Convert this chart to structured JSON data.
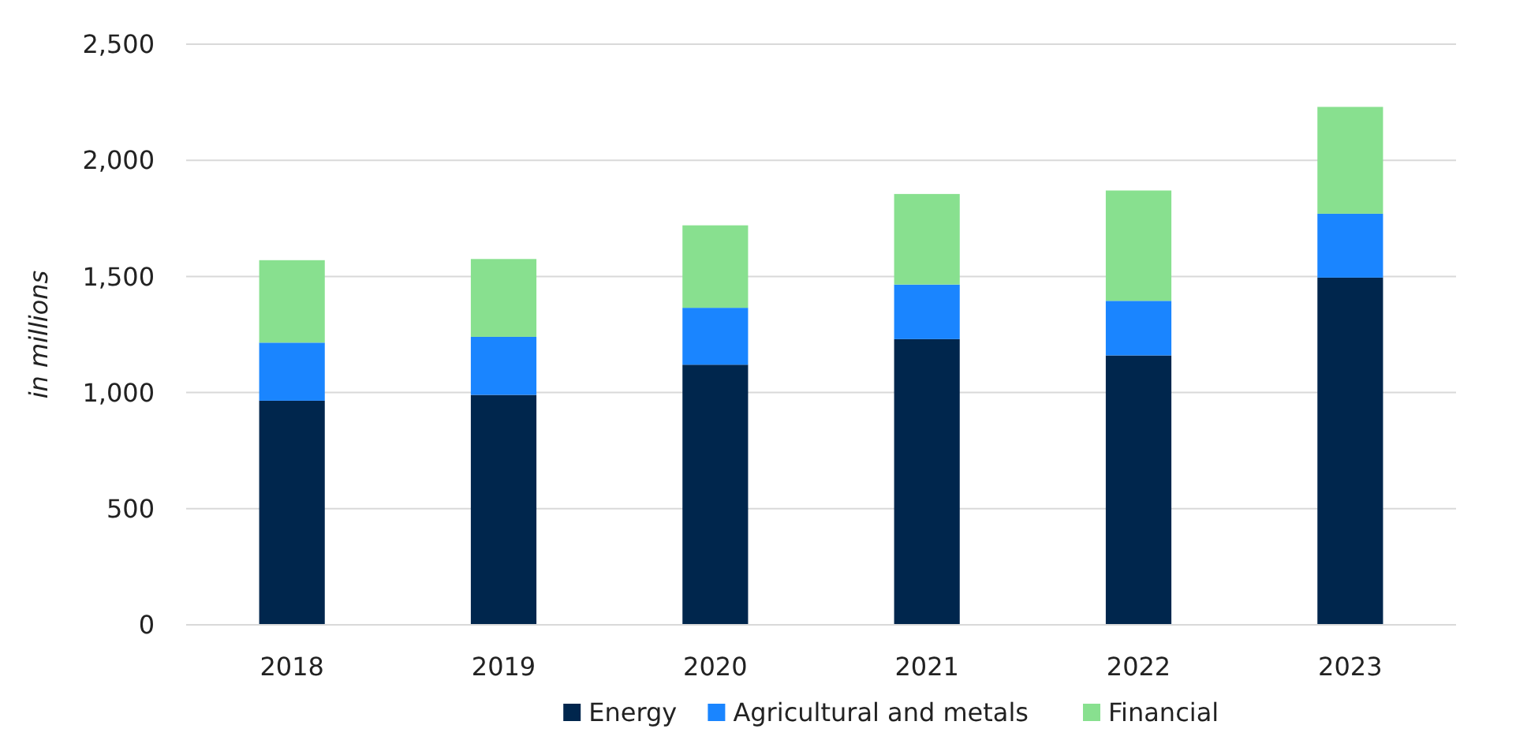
{
  "chart_data": {
    "type": "bar",
    "stacked": true,
    "ylabel": "in millions",
    "categories": [
      "2018",
      "2019",
      "2020",
      "2021",
      "2022",
      "2023"
    ],
    "series": [
      {
        "name": "Energy",
        "color": "#00264d",
        "values": [
          965,
          990,
          1120,
          1230,
          1160,
          1495
        ]
      },
      {
        "name": "Agricultural and metals",
        "color": "#1a85ff",
        "values": [
          250,
          250,
          245,
          235,
          235,
          275
        ]
      },
      {
        "name": "Financial",
        "color": "#88e08f",
        "values": [
          355,
          335,
          355,
          390,
          475,
          460
        ]
      }
    ],
    "ylim": [
      0,
      2500
    ],
    "yticks": [
      {
        "value": 0,
        "label": "0"
      },
      {
        "value": 500,
        "label": "500"
      },
      {
        "value": 1000,
        "label": "1,000"
      },
      {
        "value": 1500,
        "label": "1,500"
      },
      {
        "value": 2000,
        "label": "2,000"
      },
      {
        "value": 2500,
        "label": "2,500"
      }
    ],
    "grid": "y",
    "legend": "bottom"
  }
}
